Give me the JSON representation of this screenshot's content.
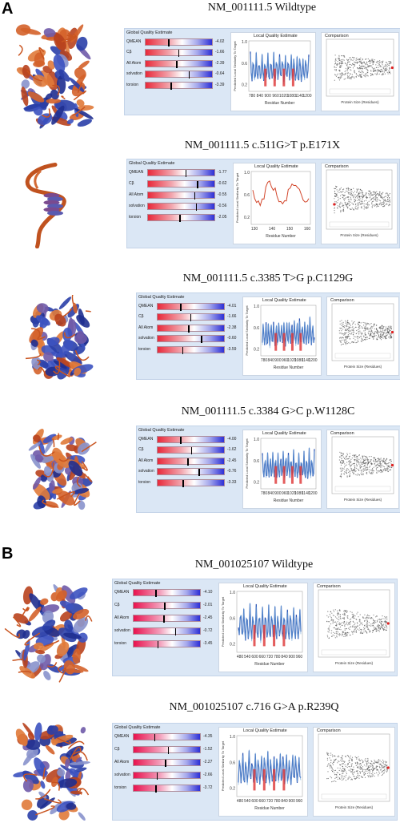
{
  "panel_a_letter": "A",
  "panel_b_letter": "B",
  "labels": {
    "global": "Global Quality Estimate",
    "local": "Local Quality Estimate",
    "comparison": "Comparison",
    "local_ylabel": "Predicted Local Similarity To Target",
    "local_xlabel": "Residue Number",
    "comparison_xlabel": "Protein Size (Residues)",
    "row_names": [
      "QMEAN",
      "Cβ",
      "All Atom",
      "solvation",
      "torsion"
    ]
  },
  "entries": [
    {
      "title": "NM_001111.5  Wildtype",
      "scores": [
        "-4.02",
        "-1.66",
        "-2.39",
        "-0.64",
        "-3.39"
      ],
      "mark_fraction": [
        0.33,
        0.48,
        0.45,
        0.63,
        0.37
      ],
      "x_ticks": [
        "780",
        "840",
        "900",
        "960",
        "1020",
        "1080",
        "1140",
        "1200"
      ],
      "y_ticks": [
        "1.0",
        "0.6",
        "0.2"
      ],
      "bar_style": "red",
      "mol_style": "large"
    },
    {
      "title": "NM_001111.5  c.511G>T p.E171X",
      "scores": [
        "-1.77",
        "-0.62",
        "-0.55",
        "-0.56",
        "-2.05"
      ],
      "mark_fraction": [
        0.55,
        0.72,
        0.68,
        0.7,
        0.46
      ],
      "x_ticks": [
        "130",
        "140",
        "150",
        "160"
      ],
      "y_ticks": [
        "1.0",
        "0.6",
        "0.2"
      ],
      "bar_style": "red",
      "mol_style": "small"
    },
    {
      "title": "NM_001111.5  c.3385 T>G p.C1129G",
      "scores": [
        "-4.01",
        "-1.66",
        "-2.38",
        "-0.60",
        "-3.59"
      ],
      "mark_fraction": [
        0.33,
        0.48,
        0.45,
        0.64,
        0.36
      ],
      "x_ticks": [
        "780",
        "840",
        "900",
        "960",
        "1020",
        "1080",
        "1140",
        "1200"
      ],
      "y_ticks": [
        "1.0",
        "0.6",
        "0.2"
      ],
      "bar_style": "red",
      "mol_style": "large"
    },
    {
      "title": "NM_001111.5  c.3384 G>C p.W1128C",
      "scores": [
        "-4.00",
        "-1.62",
        "-2.45",
        "-0.76",
        "-3.33"
      ],
      "mark_fraction": [
        0.33,
        0.49,
        0.44,
        0.6,
        0.37
      ],
      "x_ticks": [
        "780",
        "840",
        "900",
        "960",
        "1020",
        "1080",
        "1140",
        "1200"
      ],
      "y_ticks": [
        "1.0",
        "0.6",
        "0.2"
      ],
      "bar_style": "red",
      "mol_style": "large"
    },
    {
      "title": "NM_001025107  Wildtype",
      "scores": [
        "-4.10",
        "-2.01",
        "-2.45",
        "-0.72",
        "-3.45"
      ],
      "mark_fraction": [
        0.32,
        0.45,
        0.44,
        0.61,
        0.35
      ],
      "x_ticks": [
        "480",
        "540",
        "600",
        "660",
        "720",
        "780",
        "840",
        "900",
        "960"
      ],
      "y_ticks": [
        "1.0",
        "0.6",
        "0.2"
      ],
      "bar_style": "pink",
      "mol_style": "large"
    },
    {
      "title": "NM_001025107  c.716 G>A p.R239Q",
      "scores": [
        "-4.35",
        "-1.52",
        "-2.27",
        "-2.66",
        "-3.72"
      ],
      "mark_fraction": [
        0.3,
        0.5,
        0.46,
        0.34,
        0.32
      ],
      "x_ticks": [
        "480",
        "540",
        "600",
        "660",
        "720",
        "780",
        "840",
        "900",
        "960"
      ],
      "y_ticks": [
        "1.0",
        "0.6",
        "0.2"
      ],
      "bar_style": "pink",
      "mol_style": "large"
    }
  ]
}
